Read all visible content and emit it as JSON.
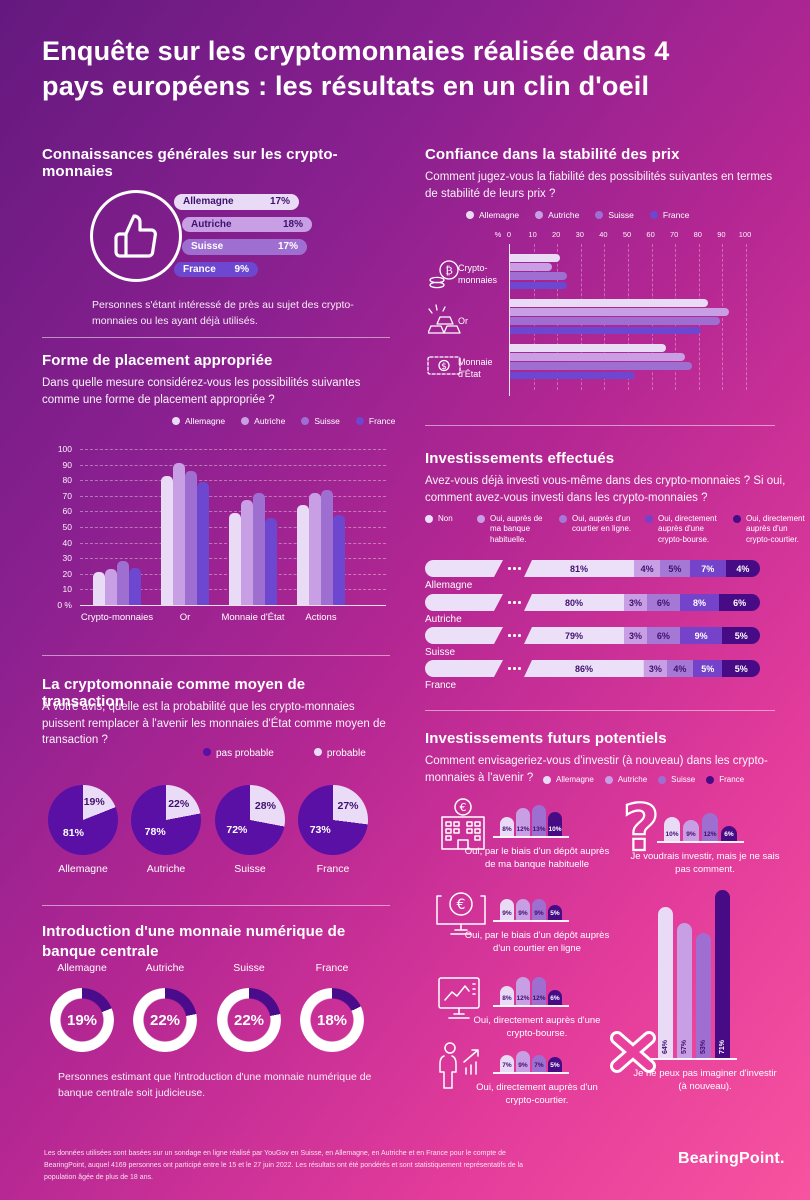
{
  "title": "Enquête sur les cryptomonnaies réalisée dans 4 pays européens : les résultats en un clin d'oeil",
  "countries": [
    "Allemagne",
    "Autriche",
    "Suisse",
    "France"
  ],
  "colors": {
    "series": [
      "#e9dbf6",
      "#c89fe4",
      "#9e6fd1",
      "#6d47cf"
    ],
    "series_dark": "#470c85",
    "pie_dark": "#5a10a5",
    "pie_light": "#eadcf7",
    "donut_arc": "#4a0c8a",
    "segments": [
      "#ece0f8",
      "#c89fe4",
      "#a478d4",
      "#7443c9",
      "#470c85"
    ],
    "text_dark": "#41106e",
    "background_top": "#64197f",
    "background_bottom": "#f7539f"
  },
  "sections": {
    "knowledge": {
      "title": "Connaissances générales sur les crypto-monnaies",
      "note": "Personnes s'étant intéressé de près au sujet des crypto-monnaies ou les ayant déjà utilisés."
    },
    "placement": {
      "title": "Forme de placement appropriée",
      "subtitle": "Dans quelle mesure considérez-vous les possibilités suivantes comme une forme de placement appropriée ?"
    },
    "transaction": {
      "title": "La cryptomonnaie comme moyen de transaction",
      "subtitle": "À votre avis, quelle est la probabilité que les crypto-monnaies puissent remplacer à l'avenir les monnaies d'État comme moyen de transaction ?"
    },
    "cbdc": {
      "title": "Introduction d'une monnaie numérique de banque centrale",
      "note": "Personnes estimant que l'introduction d'une monnaie numérique de banque centrale soit judicieuse."
    },
    "stability": {
      "title": "Confiance dans la stabilité des prix",
      "subtitle": "Comment jugez-vous la fiabilité des possibilités suivantes en termes de stabilité de leurs prix ?"
    },
    "investments": {
      "title": "Investissements effectués",
      "subtitle": "Avez-vous déjà investi vous-même dans des crypto-monnaies ? Si oui, comment avez-vous investi dans les crypto-monnaies ?"
    },
    "future": {
      "title": "Investissements futurs potentiels",
      "subtitle": "Comment envisageriez-vous d'investir (à nouveau) dans les crypto-monnaies à l'avenir ?"
    }
  },
  "footer": {
    "disclaimer": "Les données utilisées sont basées sur un sondage en ligne réalisé par YouGov en Suisse, en Allemagne, en Autriche et en France pour le compte de BearingPoint, auquel 4169 personnes ont participé entre le 15 et le 27 juin 2022. Les résultats ont été pondérés et sont statistiquement représentatifs de la population âgée de plus de 18 ans.",
    "brand": "BearingPoint."
  },
  "chart_data": [
    {
      "id": "knowledge",
      "type": "bar",
      "orientation": "horizontal",
      "title": "Connaissances générales sur les crypto-monnaies",
      "categories": [
        "Allemagne",
        "Autriche",
        "Suisse",
        "France"
      ],
      "values": [
        17,
        18,
        17,
        9
      ],
      "unit": "%"
    },
    {
      "id": "placement",
      "type": "bar",
      "title": "Forme de placement appropriée",
      "categories": [
        "Crypto-monnaies",
        "Or",
        "Monnaie d'État",
        "Actions"
      ],
      "series": [
        {
          "name": "Allemagne",
          "values": [
            21,
            83,
            59,
            64
          ]
        },
        {
          "name": "Autriche",
          "values": [
            23,
            91,
            67,
            72
          ]
        },
        {
          "name": "Suisse",
          "values": [
            28,
            86,
            72,
            74
          ]
        },
        {
          "name": "France",
          "values": [
            24,
            79,
            56,
            58
          ]
        }
      ],
      "ylim": [
        0,
        100
      ],
      "yticks": [
        0,
        10,
        20,
        30,
        40,
        50,
        60,
        70,
        80,
        90,
        100
      ],
      "ylabel": "%",
      "grid": true,
      "legend_position": "top"
    },
    {
      "id": "transaction",
      "type": "pie",
      "title": "La cryptomonnaie comme moyen de transaction",
      "legend": [
        "pas probable",
        "probable"
      ],
      "pies": [
        {
          "label": "Allemagne",
          "pas_probable": 81,
          "probable": 19
        },
        {
          "label": "Autriche",
          "pas_probable": 78,
          "probable": 22
        },
        {
          "label": "Suisse",
          "pas_probable": 72,
          "probable": 28
        },
        {
          "label": "France",
          "pas_probable": 73,
          "probable": 27
        }
      ],
      "unit": "%"
    },
    {
      "id": "cbdc",
      "type": "donut",
      "title": "Introduction d'une monnaie numérique de banque centrale",
      "categories": [
        "Allemagne",
        "Autriche",
        "Suisse",
        "France"
      ],
      "values": [
        19,
        22,
        22,
        18
      ],
      "unit": "%"
    },
    {
      "id": "stability",
      "type": "bar",
      "orientation": "horizontal",
      "title": "Confiance dans la stabilité des prix",
      "categories": [
        "Crypto-monnaies",
        "Or",
        "Monnaie d'État"
      ],
      "series": [
        {
          "name": "Allemagne",
          "values": [
            21,
            84,
            66
          ]
        },
        {
          "name": "Autriche",
          "values": [
            18,
            93,
            74
          ]
        },
        {
          "name": "Suisse",
          "values": [
            24,
            89,
            77
          ]
        },
        {
          "name": "France",
          "values": [
            24,
            81,
            53
          ]
        }
      ],
      "xlim": [
        0,
        100
      ],
      "xticks": [
        0,
        10,
        20,
        30,
        40,
        50,
        60,
        70,
        80,
        90,
        100
      ],
      "xlabel": "%",
      "grid": true,
      "legend_position": "top"
    },
    {
      "id": "investments",
      "type": "stacked-bar",
      "title": "Investissements effectués",
      "unit": "%",
      "segments": [
        "Non",
        "Oui, auprès de ma banque habituelle.",
        "Oui, auprès d'un courtier en ligne.",
        "Oui, directement auprès d'une crypto-bourse.",
        "Oui, directement auprès d'un crypto-courtier."
      ],
      "categories": [
        "Allemagne",
        "Autriche",
        "Suisse",
        "France"
      ],
      "rows": [
        [
          81,
          4,
          5,
          7,
          4
        ],
        [
          80,
          3,
          6,
          8,
          6
        ],
        [
          79,
          3,
          6,
          9,
          5
        ],
        [
          86,
          3,
          4,
          5,
          5
        ]
      ]
    },
    {
      "id": "future",
      "type": "bar-groups",
      "title": "Investissements futurs potentiels",
      "unit": "%",
      "series_names": [
        "Allemagne",
        "Autriche",
        "Suisse",
        "France"
      ],
      "groups": [
        {
          "icon": "bank-icon",
          "label": "Oui, par le biais d'un dépôt auprès de ma banque habituelle",
          "values": [
            8,
            12,
            13,
            10
          ]
        },
        {
          "icon": "online-broker-icon",
          "label": "Oui, par le biais d'un dépôt auprès d'un courtier en ligne",
          "values": [
            9,
            9,
            9,
            5
          ]
        },
        {
          "icon": "crypto-exchange-icon",
          "label": "Oui, directement auprès d'une crypto-bourse.",
          "values": [
            8,
            12,
            12,
            6
          ]
        },
        {
          "icon": "crypto-broker-icon",
          "label": "Oui, directement auprès d'un crypto-courtier.",
          "values": [
            7,
            9,
            7,
            5
          ]
        },
        {
          "icon": "question-icon",
          "label": "Je voudrais investir, mais je ne sais pas comment.",
          "values": [
            10,
            9,
            12,
            6
          ]
        },
        {
          "icon": "cannot-imagine-icon",
          "label": "Je ne peux pas imaginer d'investir (à nouveau).",
          "values": [
            64,
            57,
            53,
            71
          ]
        }
      ]
    }
  ]
}
